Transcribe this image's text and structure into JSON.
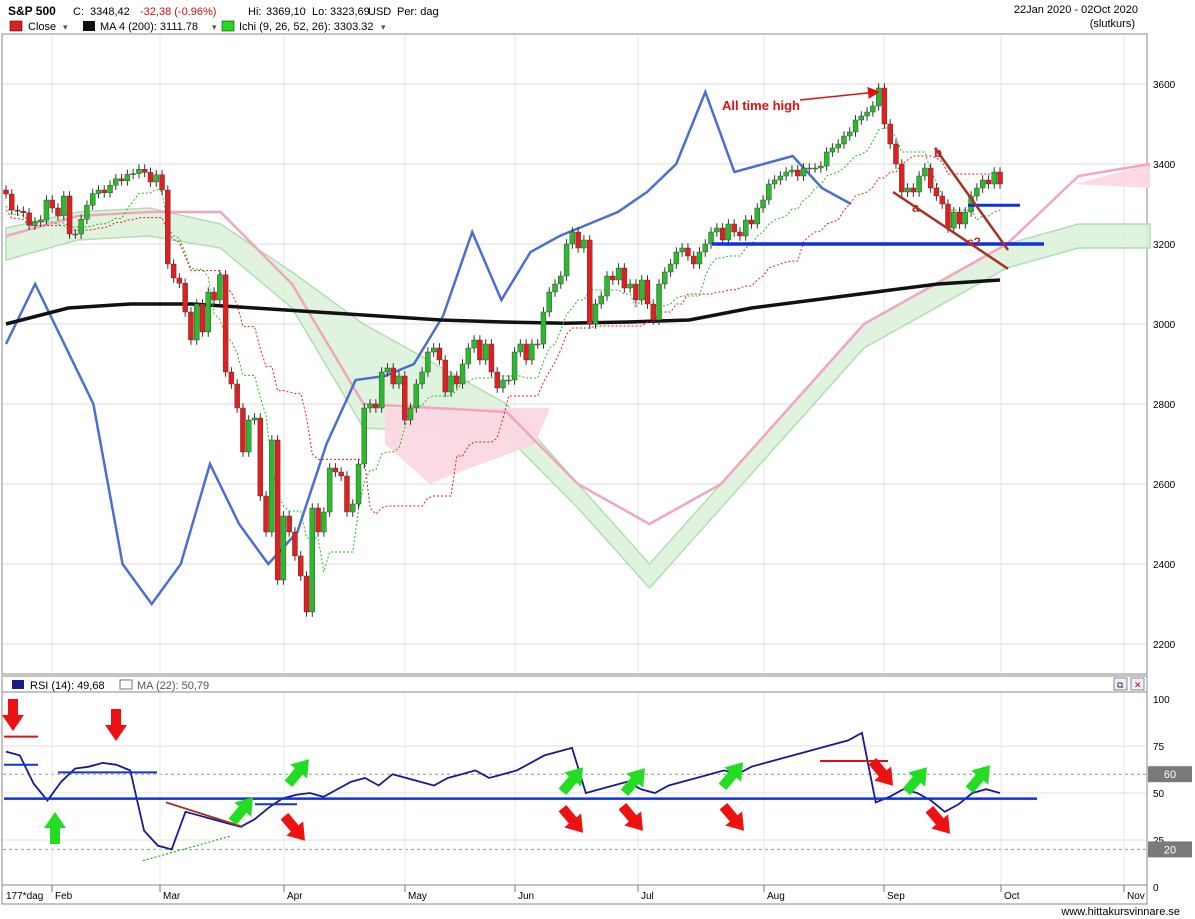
{
  "header": {
    "symbol": "S&P 500",
    "close_label": "C:",
    "close_value": "3348,42",
    "change": "-32,38 (-0.96%)",
    "high_label": "Hi:",
    "high_value": "3369,10",
    "low_label": "Lo:",
    "low_value": "3323,69",
    "currency": "USD",
    "period": "Per: dag",
    "date_range": "22Jan 2020 - 02Oct 2020",
    "price_mode": "(slutkurs)"
  },
  "legend": {
    "close": "Close",
    "ma": "MA 4 (200): 3111.78",
    "ichi": "Ichi (9, 26, 52, 26): 3303.32"
  },
  "rsi_legend": {
    "rsi": "RSI (14): 49,68",
    "ma": "MA (22): 50,79"
  },
  "bottom": {
    "range_label": "177*dag",
    "watermark": "www.hittakursvinnare.se"
  },
  "colors": {
    "up": "#2db82d",
    "down": "#e02020",
    "ma200": "#111111",
    "rsi_overlay": "#4a6fcf",
    "rsi": "#1a1a8c",
    "cloud_green": "#dcf2dc",
    "cloud_pink": "#fbd8e2",
    "blue_support": "#1030e0",
    "trend_brown": "#a03520",
    "arrow_green": "#22dd22",
    "arrow_red": "#ee1111"
  },
  "annotations": {
    "ath": "All time high",
    "wave_a": "a",
    "wave_b": "b",
    "wave_c": "c?"
  },
  "chart_data": [
    {
      "type": "candlestick",
      "title": "S&P 500",
      "y_ticks": [
        2200,
        2400,
        2600,
        2800,
        3000,
        3200,
        3400,
        3600
      ],
      "ylim": [
        2130,
        3740
      ],
      "x_months": [
        "Feb",
        "Mar",
        "Apr",
        "May",
        "Jun",
        "Jul",
        "Aug",
        "Sep",
        "Oct",
        "Nov"
      ],
      "closes": [
        3325,
        3285,
        3282,
        3278,
        3247,
        3255,
        3260,
        3310,
        3290,
        3271,
        3320,
        3225,
        3225,
        3262,
        3297,
        3326,
        3335,
        3328,
        3347,
        3363,
        3358,
        3374,
        3376,
        3387,
        3379,
        3355,
        3373,
        3335,
        3150,
        3115,
        3102,
        3030,
        2960,
        3050,
        2980,
        3080,
        3060,
        3123,
        2880,
        2850,
        2790,
        2680,
        2760,
        2765,
        2570,
        2480,
        2710,
        2360,
        2520,
        2480,
        2420,
        2370,
        2280,
        2540,
        2480,
        2530,
        2640,
        2630,
        2620,
        2530,
        2550,
        2650,
        2790,
        2800,
        2790,
        2880,
        2890,
        2850,
        2870,
        2760,
        2790,
        2850,
        2880,
        2930,
        2940,
        2910,
        2830,
        2870,
        2850,
        2900,
        2940,
        2960,
        2910,
        2950,
        2880,
        2840,
        2860,
        2860,
        2930,
        2950,
        2910,
        2950,
        2950,
        3030,
        3080,
        3100,
        3120,
        3200,
        3230,
        3190,
        3210,
        3000,
        3050,
        3070,
        3120,
        3110,
        3140,
        3090,
        3100,
        3060,
        3110,
        3050,
        3010,
        3100,
        3130,
        3150,
        3180,
        3190,
        3170,
        3150,
        3180,
        3200,
        3230,
        3240,
        3210,
        3250,
        3230,
        3220,
        3260,
        3250,
        3290,
        3310,
        3350,
        3360,
        3370,
        3380,
        3385,
        3370,
        3390,
        3390,
        3390,
        3395,
        3430,
        3440,
        3450,
        3470,
        3480,
        3510,
        3520,
        3530,
        3545,
        3590,
        3500,
        3450,
        3400,
        3330,
        3340,
        3330,
        3370,
        3390,
        3340,
        3320,
        3300,
        3240,
        3280,
        3250,
        3280,
        3320,
        3340,
        3360,
        3350,
        3380,
        3350
      ],
      "ma200": [
        3000,
        3040,
        3050,
        3050,
        3040,
        3030,
        3020,
        3010,
        3005,
        3002,
        3005,
        3010,
        3040,
        3060,
        3080,
        3100,
        3110
      ],
      "ichimoku_cloud_green_upper": [
        3240,
        3280,
        3290,
        3250,
        3130,
        3000,
        2900,
        2800,
        2600,
        2400,
        2600,
        2800,
        3000,
        3100,
        3200,
        3250,
        3250
      ],
      "ichimoku_cloud_pink_upper": [
        3220,
        3270,
        3280,
        3280,
        3100,
        2800,
        2790,
        2780,
        2600,
        2500,
        2600,
        2800,
        3000,
        3100,
        3200,
        3370,
        3400
      ]
    },
    {
      "type": "line",
      "title": "RSI (14)",
      "y_ticks": [
        0,
        25,
        50,
        75,
        100
      ],
      "ylim": [
        0,
        100
      ],
      "reference_levels": [
        60,
        20
      ],
      "series": [
        {
          "name": "RSI (14)",
          "values": [
            72,
            70,
            55,
            46,
            56,
            63,
            64,
            66,
            65,
            62,
            30,
            22,
            20,
            40,
            38,
            36,
            34,
            32,
            36,
            42,
            47,
            49,
            50,
            48,
            52,
            56,
            58,
            54,
            60,
            58,
            56,
            54,
            58,
            60,
            62,
            58,
            60,
            62,
            66,
            70,
            72,
            74,
            50,
            52,
            54,
            56,
            52,
            50,
            54,
            56,
            58,
            60,
            62,
            60,
            64,
            66,
            68,
            70,
            72,
            74,
            76,
            78,
            82,
            45,
            48,
            52,
            50,
            46,
            40,
            44,
            50,
            52,
            50
          ]
        },
        {
          "name": "MA (22)",
          "values": [
            50.79
          ]
        }
      ]
    }
  ]
}
